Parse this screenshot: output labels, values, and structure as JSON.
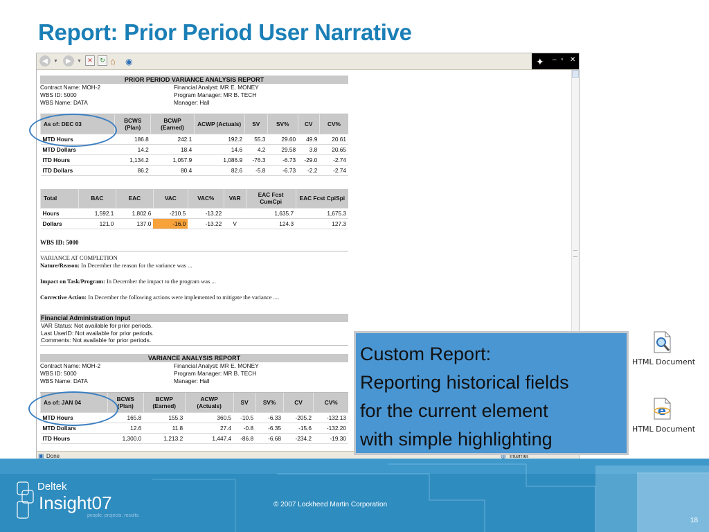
{
  "slide": {
    "title": "Report: Prior Period User Narrative",
    "copyright": "© 2007 Lockheed Martin Corporation",
    "page_number": "18",
    "logo": {
      "brand": "Deltek",
      "product": "Insight",
      "version": "07",
      "tagline": "people. projects. results."
    }
  },
  "browser": {
    "status_left": "Done",
    "status_zone": "Internet",
    "report": {
      "header1": "PRIOR PERIOD VARIANCE ANALYSIS REPORT",
      "info1": {
        "contract": "Contract Name: MOH-2",
        "wbs_id": "WBS ID: 5000",
        "wbs_name": "WBS Name: DATA",
        "analyst": "Financial Analyst: MR E. MONEY",
        "pm": "Program Manager: MR B. TECH",
        "manager": "Manager: Hall"
      },
      "table1": {
        "as_of": "As of: DEC 03",
        "col_bcws": "BCWS (Plan)",
        "col_bcwp": "BCWP (Earned)",
        "col_acwp": "ACWP (Actuals)",
        "col_sv": "SV",
        "col_svp": "SV%",
        "col_cv": "CV",
        "col_cvp": "CV%",
        "rows": [
          {
            "label": "MTD Hours",
            "bcws": "186.8",
            "bcwp": "242.1",
            "acwp": "192.2",
            "sv": "55.3",
            "svp": "29.60",
            "cv": "49.9",
            "cvp": "20.61"
          },
          {
            "label": "MTD Dollars",
            "bcws": "14.2",
            "bcwp": "18.4",
            "acwp": "14.6",
            "sv": "4.2",
            "svp": "29.58",
            "cv": "3.8",
            "cvp": "20.65"
          },
          {
            "label": "ITD Hours",
            "bcws": "1,134.2",
            "bcwp": "1,057.9",
            "acwp": "1,086.9",
            "sv": "-76.3",
            "svp": "-6.73",
            "cv": "-29.0",
            "cvp": "-2.74"
          },
          {
            "label": "ITD Dollars",
            "bcws": "86.2",
            "bcwp": "80.4",
            "acwp": "82.6",
            "sv": "-5.8",
            "svp": "-6.73",
            "cv": "-2.2",
            "cvp": "-2.74"
          }
        ]
      },
      "table2": {
        "col_total": "Total",
        "col_bac": "BAC",
        "col_eac": "EAC",
        "col_vac": "VAC",
        "col_vacp": "VAC%",
        "col_var": "VAR",
        "col_cumcpi": "EAC Fcst CumCpi",
        "col_cpispi": "EAC Fcst CpiSpi",
        "rows": [
          {
            "label": "Hours",
            "bac": "1,592.1",
            "eac": "1,802.6",
            "vac": "-210.5",
            "vacp": "-13.22",
            "var": "",
            "cumcpi": "1,635.7",
            "cpispi": "1,675.3"
          },
          {
            "label": "Dollars",
            "bac": "121.0",
            "eac": "137.0",
            "vac": "-16.0",
            "vacp": "-13.22",
            "var": "V",
            "cumcpi": "124.3",
            "cpispi": "127.3"
          }
        ]
      },
      "narrative": {
        "wbs": "WBS ID: 5000",
        "vac_heading": "VARIANCE AT COMPLETION",
        "nature_label": "Nature/Reason:",
        "nature_text": " In December the reason for the variance was ...",
        "impact_label": "Impact on Task/Program:",
        "impact_text": " In December the impact to the program was ...",
        "corrective_label": "Corrective Action:",
        "corrective_text": " In December the following actions were implemented to mitigate the variance ...."
      },
      "fin_admin": {
        "header": "Financial Administration Input",
        "var_status": "VAR Status: Not available for prior periods.",
        "last_user": "Last UserID: Not available for prior periods.",
        "comments": "Comments: Not available for prior periods."
      },
      "header2": "VARIANCE ANALYSIS REPORT",
      "info2": {
        "contract": "Contract Name: MOH-2",
        "wbs_id": "WBS ID: 5000",
        "wbs_name": "WBS Name: DATA",
        "analyst": "Financial Analyst: MR E. MONEY",
        "pm": "Program Manager: MR B. TECH",
        "manager": "Manager: Hall"
      },
      "table3": {
        "as_of": "As of: JAN 04",
        "col_bcws": "BCWS (Plan)",
        "col_bcwp": "BCWP (Earned)",
        "col_acwp": "ACWP (Actuals)",
        "col_sv": "SV",
        "col_svp": "SV%",
        "col_cv": "CV",
        "col_cvp": "CV%",
        "rows": [
          {
            "label": "MTD Hours",
            "bcws": "165.8",
            "bcwp": "155.3",
            "acwp": "360.5",
            "sv": "-10.5",
            "svp": "-6.33",
            "cv": "-205.2",
            "cvp": "-132.13"
          },
          {
            "label": "MTD Dollars",
            "bcws": "12.6",
            "bcwp": "11.8",
            "acwp": "27.4",
            "sv": "-0.8",
            "svp": "-6.35",
            "cv": "-15.6",
            "cvp": "-132.20"
          },
          {
            "label": "ITD Hours",
            "bcws": "1,300.0",
            "bcwp": "1,213.2",
            "acwp": "1,447.4",
            "sv": "-86.8",
            "svp": "-6.68",
            "cv": "-234.2",
            "cvp": "-19.30"
          }
        ]
      }
    }
  },
  "callout": {
    "line1": "Custom Report:",
    "line2": "Reporting historical fields",
    "line3": "for the current element",
    "line4": "with simple highlighting"
  },
  "desktop_icons": [
    {
      "label": "HTML Document",
      "icon": "search-document-icon"
    },
    {
      "label": "HTML Document",
      "icon": "internet-explorer-icon"
    }
  ],
  "colors": {
    "title": "#1a7fb6",
    "callout_bg": "#4a96d3",
    "footer_bg": "#2f8cbf",
    "highlight": "#f7a23a",
    "circle": "#3b7fc1"
  }
}
